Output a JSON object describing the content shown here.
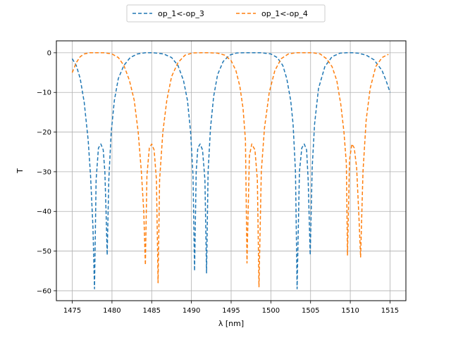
{
  "chart_data": {
    "type": "line",
    "title": "",
    "xlabel": "λ [nm]",
    "ylabel": "T",
    "xlim": [
      1473,
      1517
    ],
    "ylim": [
      -62.5,
      3
    ],
    "x_ticks": [
      1475,
      1480,
      1485,
      1490,
      1495,
      1500,
      1505,
      1510,
      1515
    ],
    "y_ticks": [
      0,
      -10,
      -20,
      -30,
      -40,
      -50,
      -60
    ],
    "grid": true,
    "legend_position": "top-center-outside",
    "line_style": "dashed",
    "series": [
      {
        "name": "op_1<-op_3",
        "color": "#1f77b4",
        "x": [
          1475.0,
          1475.5,
          1476.0,
          1476.5,
          1477.0,
          1477.3,
          1477.6,
          1477.8,
          1478.0,
          1478.3,
          1478.6,
          1478.9,
          1479.1,
          1479.25,
          1479.4,
          1479.6,
          1479.9,
          1480.3,
          1480.8,
          1481.5,
          1482.3,
          1483.2,
          1484.2,
          1485.2,
          1486.5,
          1487.5,
          1488.3,
          1489.0,
          1489.5,
          1489.9,
          1490.2,
          1490.4,
          1490.6,
          1490.8,
          1491.1,
          1491.4,
          1491.7,
          1491.9,
          1492.1,
          1492.4,
          1492.8,
          1493.3,
          1494.0,
          1494.8,
          1495.7,
          1496.7,
          1497.7,
          1498.8,
          1500.0,
          1500.8,
          1501.5,
          1502.0,
          1502.5,
          1502.8,
          1503.1,
          1503.3,
          1503.6,
          1503.9,
          1504.2,
          1504.5,
          1504.7,
          1504.95,
          1505.2,
          1505.5,
          1506.0,
          1506.8,
          1507.7,
          1508.7,
          1509.5,
          1510.3,
          1511.0,
          1512.0,
          1513.0,
          1514.0,
          1514.5,
          1515.0
        ],
        "y": [
          -1.5,
          -3.2,
          -6.5,
          -12.5,
          -22,
          -31,
          -44,
          -59.5,
          -32,
          -24,
          -23,
          -24.5,
          -30,
          -40,
          -51,
          -32,
          -20,
          -12,
          -6.5,
          -3.2,
          -1.2,
          -0.3,
          0,
          0,
          -0.3,
          -1.2,
          -3.2,
          -7,
          -12,
          -20,
          -31,
          -55,
          -30,
          -24,
          -23,
          -24.5,
          -32,
          -55.5,
          -30,
          -19,
          -11,
          -5.5,
          -2.2,
          -0.6,
          -0.05,
          0,
          0,
          0,
          -0.3,
          -1.2,
          -3.2,
          -6.5,
          -12,
          -18,
          -30,
          -59.5,
          -30,
          -24,
          -23,
          -24.5,
          -32,
          -51,
          -29,
          -18,
          -9,
          -3.5,
          -1.0,
          -0.1,
          0,
          0,
          -0.1,
          -0.6,
          -1.8,
          -4.5,
          -7,
          -10
        ]
      },
      {
        "name": "op_1<-op_4",
        "color": "#ff7f0e",
        "x": [
          1475.0,
          1475.5,
          1476.0,
          1476.5,
          1477.2,
          1478.0,
          1479.0,
          1480.0,
          1480.8,
          1481.5,
          1482.2,
          1482.8,
          1483.3,
          1483.7,
          1484.0,
          1484.2,
          1484.4,
          1484.7,
          1485.0,
          1485.3,
          1485.6,
          1485.8,
          1486.0,
          1486.4,
          1486.9,
          1487.5,
          1488.3,
          1489.2,
          1490.2,
          1491.2,
          1492.3,
          1493.3,
          1494.2,
          1495.0,
          1495.6,
          1496.1,
          1496.5,
          1496.8,
          1497.0,
          1497.3,
          1497.6,
          1498.0,
          1498.3,
          1498.5,
          1498.8,
          1499.2,
          1499.8,
          1500.5,
          1501.3,
          1502.2,
          1503.2,
          1504.3,
          1505.3,
          1506.2,
          1507.0,
          1507.7,
          1508.3,
          1508.8,
          1509.2,
          1509.5,
          1509.65,
          1509.9,
          1510.2,
          1510.5,
          1510.8,
          1511.1,
          1511.3,
          1511.6,
          1512.0,
          1512.5,
          1513.2,
          1514.0,
          1514.5,
          1514.8
        ],
        "y": [
          -5,
          -2.5,
          -1.0,
          -0.3,
          0,
          0,
          0,
          -0.3,
          -1.2,
          -3.2,
          -7,
          -12,
          -20,
          -30,
          -40,
          -53.5,
          -31,
          -24,
          -23,
          -24.5,
          -32,
          -58,
          -32,
          -20,
          -12,
          -6,
          -2.5,
          -0.6,
          -0.05,
          0,
          0,
          -0.1,
          -0.6,
          -2.0,
          -4.5,
          -8.5,
          -14,
          -22,
          -53,
          -26,
          -23,
          -24.5,
          -32,
          -59,
          -30,
          -19,
          -10,
          -4.5,
          -1.5,
          -0.3,
          0,
          0,
          0,
          -0.3,
          -1.5,
          -3.5,
          -7,
          -13,
          -20,
          -28,
          -51,
          -27,
          -23,
          -24,
          -29,
          -42,
          -51.5,
          -30,
          -17,
          -9,
          -3.5,
          -1.2,
          -0.7,
          -0.4
        ]
      }
    ]
  }
}
